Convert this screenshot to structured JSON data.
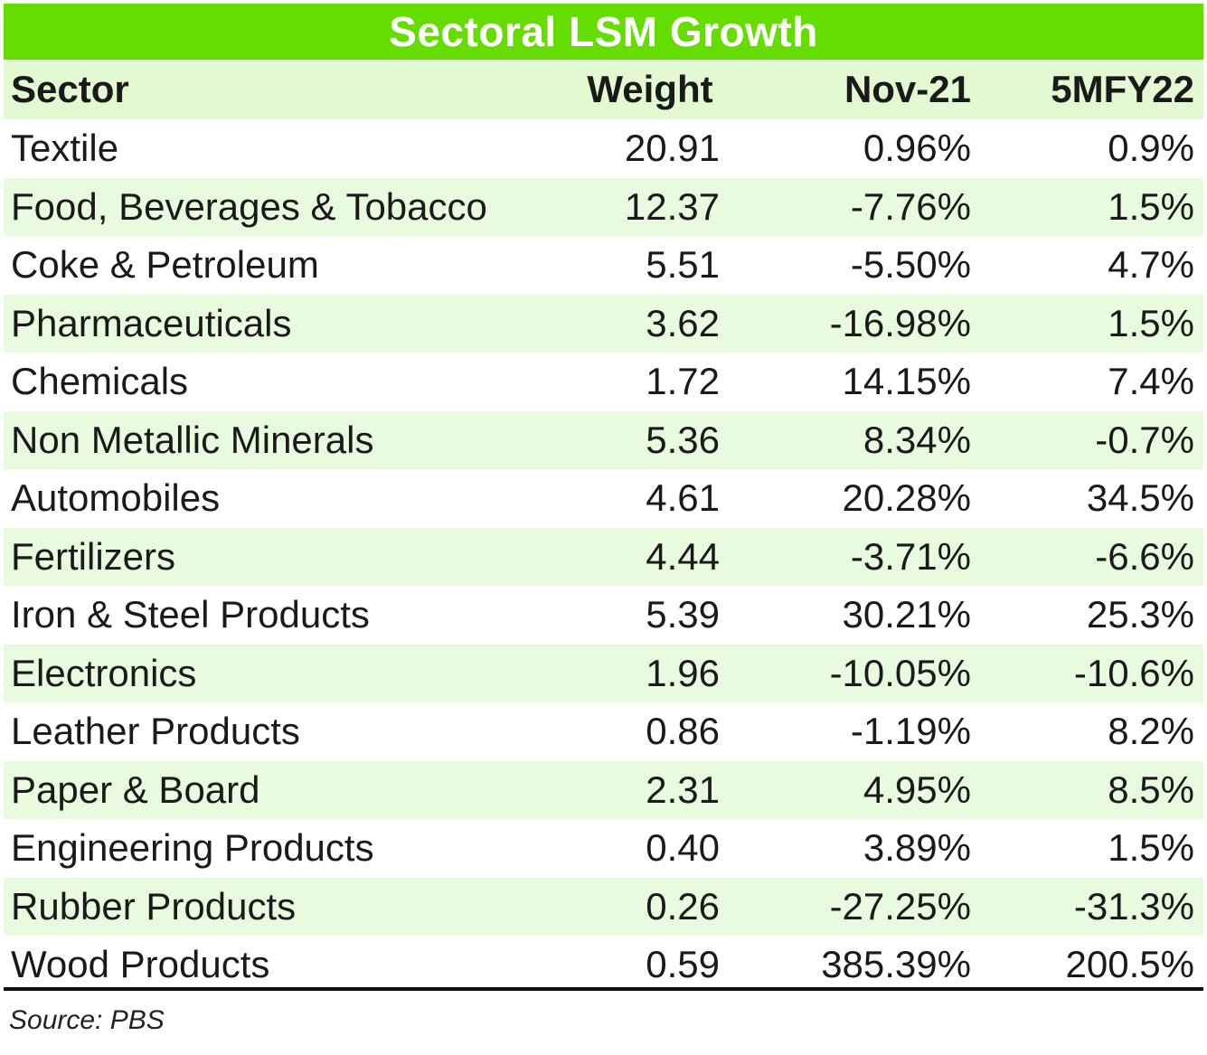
{
  "colors": {
    "title_bg": "#66dd00",
    "title_text": "#ffffff",
    "header_bg": "#e2f9d2",
    "stripe_bg": "#e9fbdf",
    "row_bg": "#ffffff"
  },
  "chart_data": {
    "type": "table",
    "title": "Sectoral LSM Growth",
    "columns": [
      "Sector",
      "Weight",
      "Nov-21",
      "5MFY22"
    ],
    "rows": [
      [
        "Textile",
        "20.91",
        "0.96%",
        "0.9%"
      ],
      [
        "Food, Beverages & Tobacco",
        "12.37",
        "-7.76%",
        "1.5%"
      ],
      [
        "Coke & Petroleum",
        "5.51",
        "-5.50%",
        "4.7%"
      ],
      [
        "Pharmaceuticals",
        "3.62",
        "-16.98%",
        "1.5%"
      ],
      [
        "Chemicals",
        "1.72",
        "14.15%",
        "7.4%"
      ],
      [
        "Non Metallic Minerals",
        "5.36",
        "8.34%",
        "-0.7%"
      ],
      [
        "Automobiles",
        "4.61",
        "20.28%",
        "34.5%"
      ],
      [
        "Fertilizers",
        "4.44",
        "-3.71%",
        "-6.6%"
      ],
      [
        "Iron & Steel Products",
        "5.39",
        "30.21%",
        "25.3%"
      ],
      [
        "Electronics",
        "1.96",
        "-10.05%",
        "-10.6%"
      ],
      [
        "Leather Products",
        "0.86",
        "-1.19%",
        "8.2%"
      ],
      [
        "Paper & Board",
        "2.31",
        "4.95%",
        "8.5%"
      ],
      [
        "Engineering Products",
        "0.40",
        "3.89%",
        "1.5%"
      ],
      [
        "Rubber Products",
        "0.26",
        "-27.25%",
        "-31.3%"
      ],
      [
        "Wood Products",
        "0.59",
        "385.39%",
        "200.5%"
      ]
    ],
    "source": "Source: PBS"
  }
}
